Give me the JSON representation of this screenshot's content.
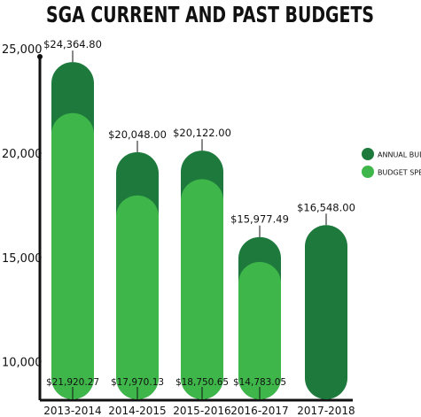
{
  "chart_data": {
    "type": "bar",
    "title": "SGA CURRENT AND PAST BUDGETS",
    "xlabel": "",
    "ylabel": "",
    "categories": [
      "2013-2014",
      "2014-2015",
      "2015-2016",
      "2016-2017",
      "2017-2018"
    ],
    "series": [
      {
        "name": "ANNUAL BUDGET",
        "color": "#1e7a3c",
        "values": [
          24364.8,
          20048.0,
          20122.0,
          15977.49,
          16548.0
        ],
        "labels": [
          "$24,364.80",
          "$20,048.00",
          "$20,122.00",
          "$15,977.49",
          "$16,548.00"
        ]
      },
      {
        "name": "BUDGET SPENT",
        "color": "#3fb64a",
        "values": [
          21920.27,
          17970.13,
          18750.65,
          14783.05,
          null
        ],
        "labels": [
          "$21,920.27",
          "$17,970.13",
          "$18,750.65",
          "$14,783.05",
          ""
        ]
      }
    ],
    "yticks": [
      10000,
      15000,
      20000,
      25000
    ],
    "ytick_labels": [
      "10,000",
      "15,000",
      "20,000",
      "25,000"
    ],
    "ylim": [
      8200,
      27000
    ],
    "legend_position": "right",
    "grid": false
  }
}
